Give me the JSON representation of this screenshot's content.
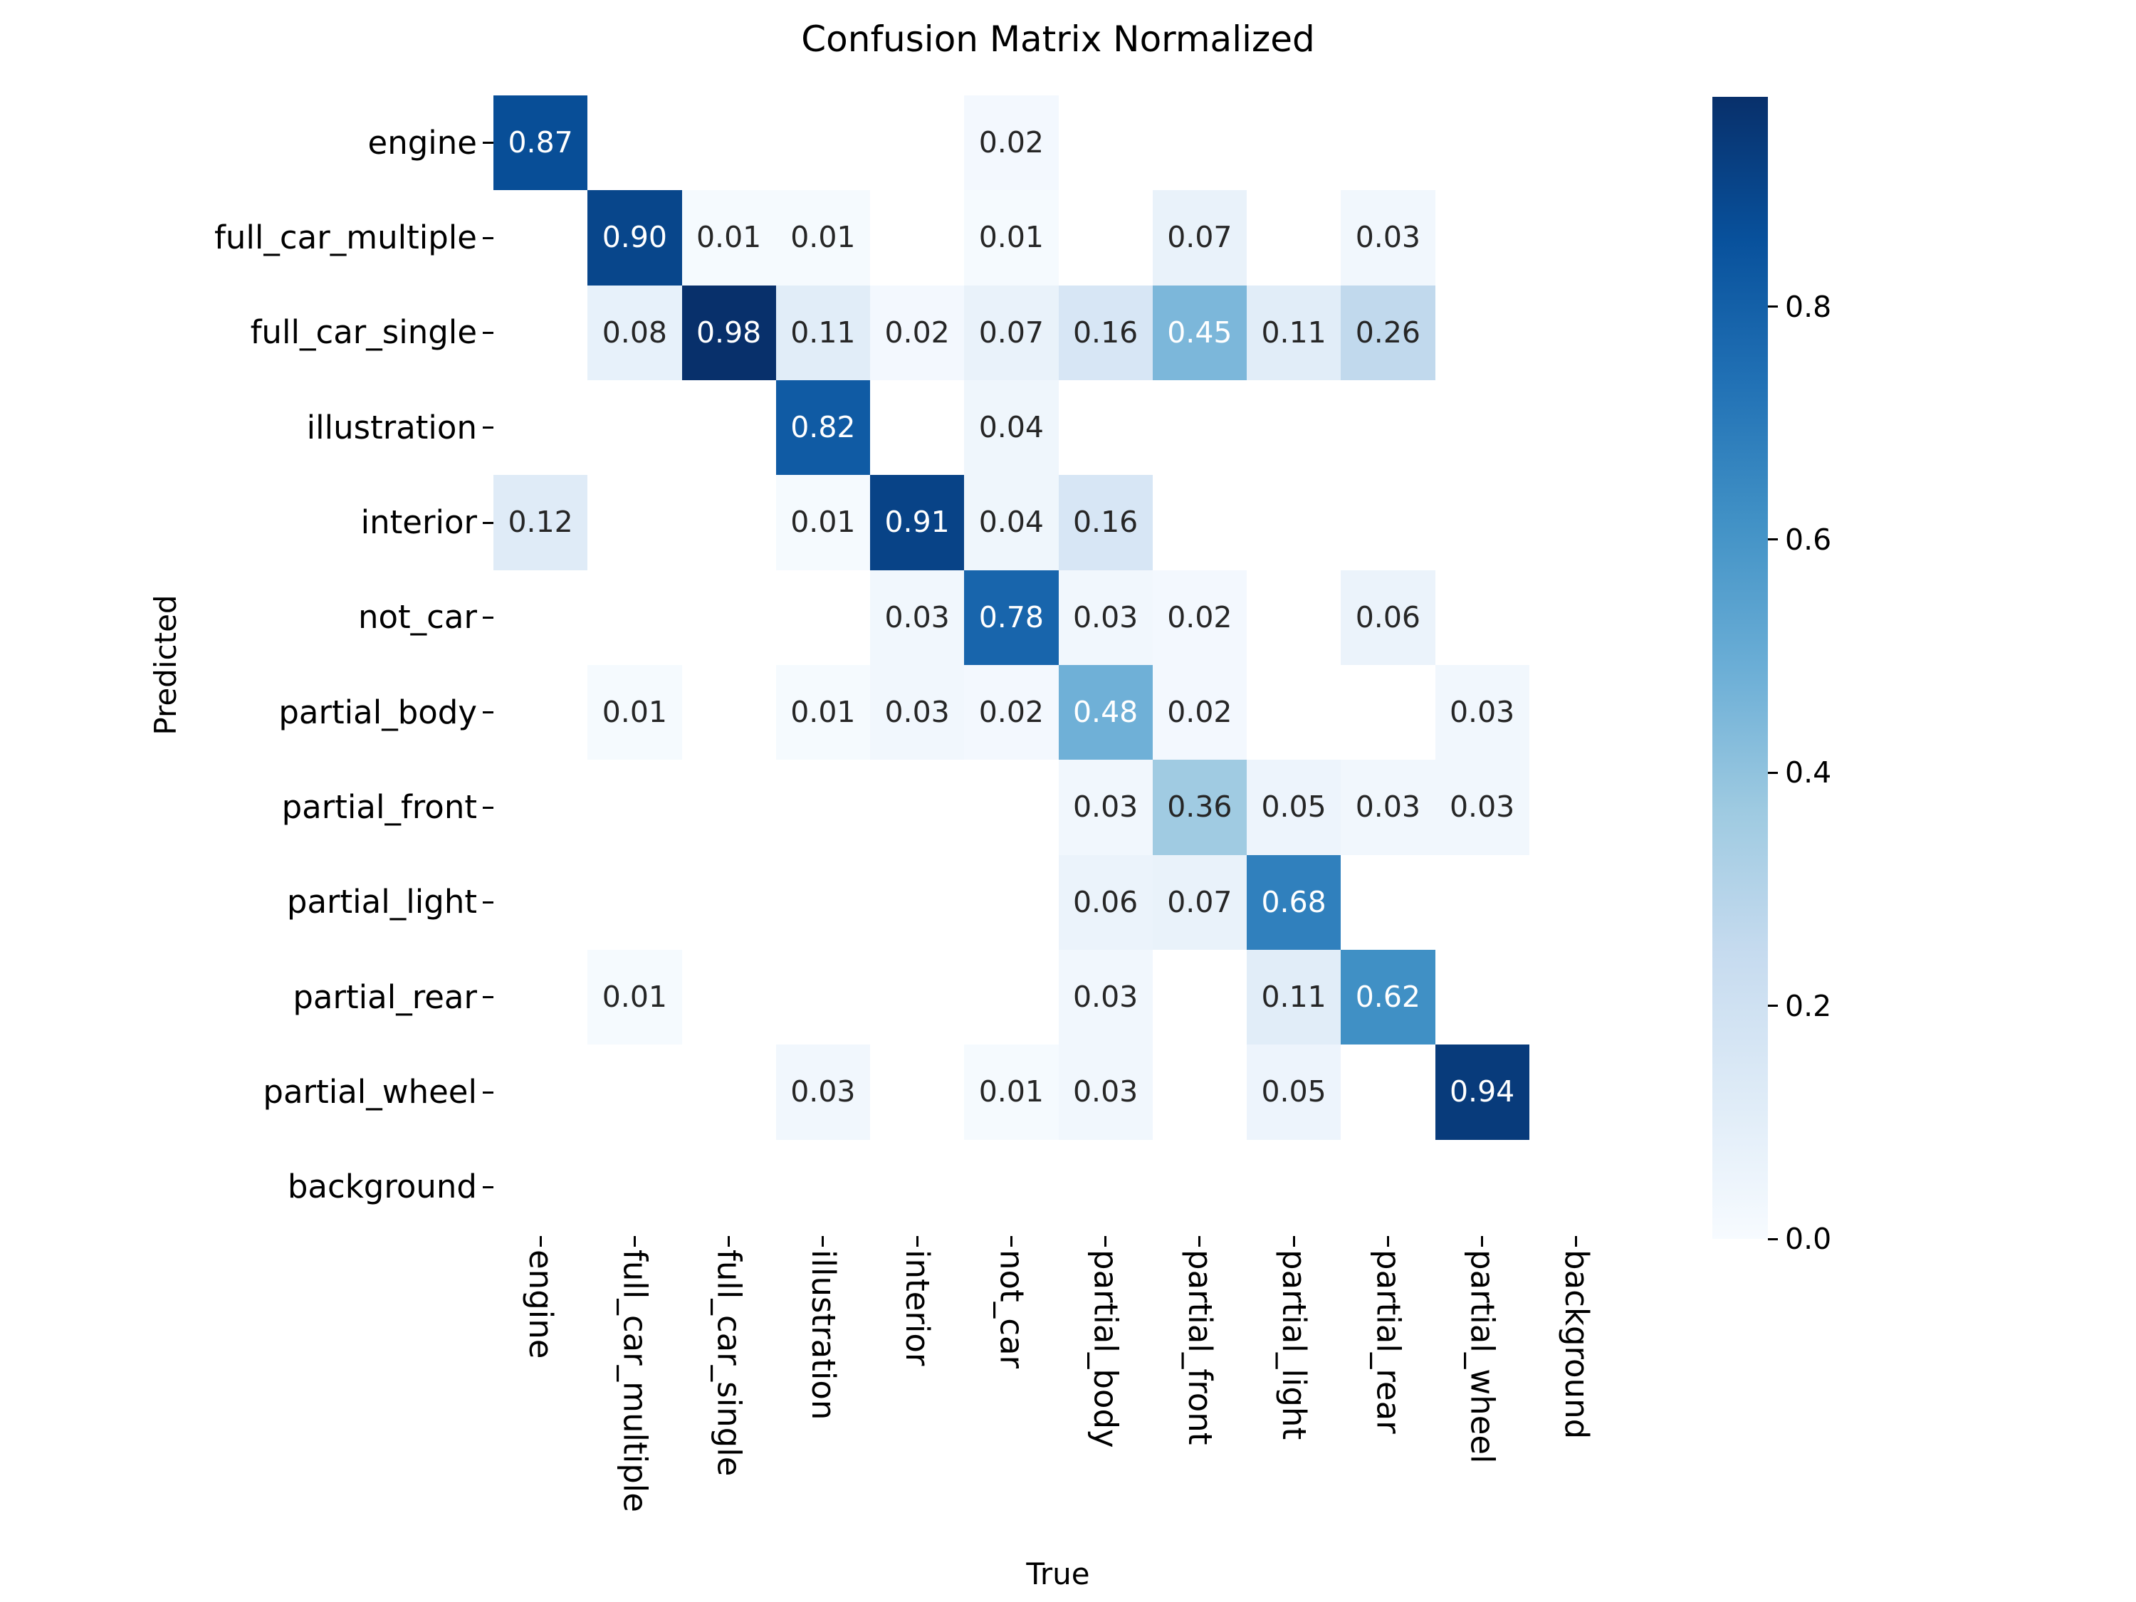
{
  "chart_data": {
    "type": "heatmap",
    "title": "Confusion Matrix Normalized",
    "xlabel": "True",
    "ylabel": "Predicted",
    "categories": [
      "engine",
      "full_car_multiple",
      "full_car_single",
      "illustration",
      "interior",
      "not_car",
      "partial_body",
      "partial_front",
      "partial_light",
      "partial_rear",
      "partial_wheel",
      "background"
    ],
    "rows_are": "Predicted",
    "columns_are": "True",
    "matrix": [
      [
        0.87,
        null,
        null,
        null,
        null,
        0.02,
        null,
        null,
        null,
        null,
        null,
        null
      ],
      [
        null,
        0.9,
        0.01,
        0.01,
        null,
        0.01,
        null,
        0.07,
        null,
        0.03,
        null,
        null
      ],
      [
        null,
        0.08,
        0.98,
        0.11,
        0.02,
        0.07,
        0.16,
        0.45,
        0.11,
        0.26,
        null,
        null
      ],
      [
        null,
        null,
        null,
        0.82,
        null,
        0.04,
        null,
        null,
        null,
        null,
        null,
        null
      ],
      [
        0.12,
        null,
        null,
        0.01,
        0.91,
        0.04,
        0.16,
        null,
        null,
        null,
        null,
        null
      ],
      [
        null,
        null,
        null,
        null,
        0.03,
        0.78,
        0.03,
        0.02,
        null,
        0.06,
        null,
        null
      ],
      [
        null,
        0.01,
        null,
        0.01,
        0.03,
        0.02,
        0.48,
        0.02,
        null,
        null,
        0.03,
        null
      ],
      [
        null,
        null,
        null,
        null,
        null,
        null,
        0.03,
        0.36,
        0.05,
        0.03,
        0.03,
        null
      ],
      [
        null,
        null,
        null,
        null,
        null,
        null,
        0.06,
        0.07,
        0.68,
        null,
        null,
        null
      ],
      [
        null,
        0.01,
        null,
        null,
        null,
        null,
        0.03,
        null,
        0.11,
        0.62,
        null,
        null
      ],
      [
        null,
        null,
        null,
        0.03,
        null,
        0.01,
        0.03,
        null,
        0.05,
        null,
        0.94,
        null
      ],
      [
        null,
        null,
        null,
        null,
        null,
        null,
        null,
        null,
        null,
        null,
        null,
        null
      ]
    ],
    "annot_format": "0.00",
    "vmin": 0.0,
    "vmax": 0.98,
    "colormap": "Blues",
    "colormap_stops": [
      "#f7fbff",
      "#deebf7",
      "#c6dbef",
      "#9ecae1",
      "#6baed6",
      "#4292c6",
      "#2171b5",
      "#08519c",
      "#08306b"
    ],
    "empty_cell_color": "#ffffff",
    "annot_text_light": "#ffffff",
    "annot_text_dark": "#262626",
    "grid": false,
    "legend": false,
    "colorbar": {
      "position": "right",
      "ticks": [
        0.8,
        0.6,
        0.4,
        0.2,
        0.0
      ],
      "top_value": 0.98,
      "bottom_value": 0.0
    }
  }
}
